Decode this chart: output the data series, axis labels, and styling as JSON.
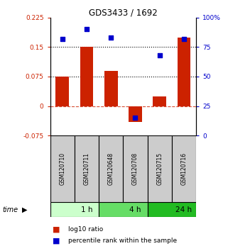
{
  "title": "GDS3433 / 1692",
  "samples": [
    "GSM120710",
    "GSM120711",
    "GSM120648",
    "GSM120708",
    "GSM120715",
    "GSM120716"
  ],
  "log10_ratio": [
    0.075,
    0.15,
    0.09,
    -0.04,
    0.025,
    0.175
  ],
  "percentile_rank": [
    82,
    90,
    83,
    15,
    68,
    82
  ],
  "ylim_left": [
    -0.075,
    0.225
  ],
  "ylim_right": [
    0,
    100
  ],
  "yticks_left": [
    -0.075,
    0,
    0.075,
    0.15,
    0.225
  ],
  "yticks_right": [
    0,
    25,
    50,
    75,
    100
  ],
  "ytick_labels_left": [
    "-0.075",
    "0",
    "0.075",
    "0.15",
    "0.225"
  ],
  "ytick_labels_right": [
    "0",
    "25",
    "50",
    "75",
    "100%"
  ],
  "hlines_dotted": [
    0.075,
    0.15
  ],
  "hline_dashed": 0,
  "bar_color": "#cc2200",
  "square_color": "#0000cc",
  "time_groups": [
    {
      "label": "1 h",
      "start": 0,
      "end": 2,
      "color": "#ccffcc"
    },
    {
      "label": "4 h",
      "start": 2,
      "end": 4,
      "color": "#66dd66"
    },
    {
      "label": "24 h",
      "start": 4,
      "end": 6,
      "color": "#22bb22"
    }
  ],
  "sample_box_color": "#cccccc",
  "legend_items": [
    {
      "label": "log10 ratio",
      "color": "#cc2200"
    },
    {
      "label": "percentile rank within the sample",
      "color": "#0000cc"
    }
  ],
  "bar_width": 0.55,
  "square_size": 22
}
